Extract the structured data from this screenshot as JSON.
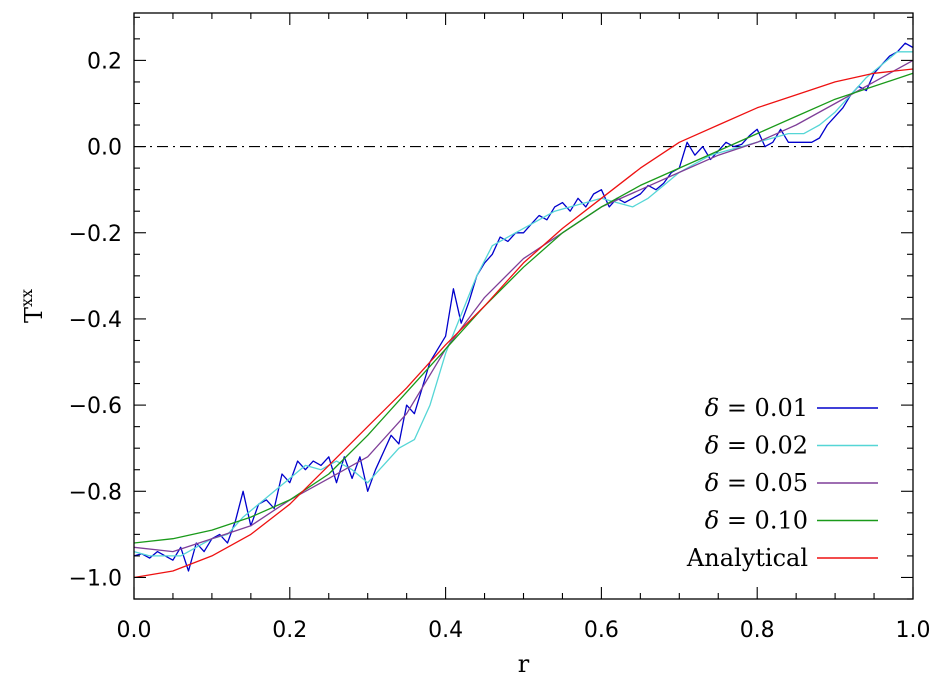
{
  "chart_data": {
    "type": "line",
    "xlabel": "r",
    "ylabel": "T",
    "ylabel_superscript": "xx",
    "xlim": [
      0.0,
      1.0
    ],
    "ylim": [
      -1.05,
      0.31
    ],
    "x_ticks": [
      "0.0",
      "0.2",
      "0.4",
      "0.6",
      "0.8",
      "1.0"
    ],
    "y_ticks": [
      "0.2",
      "0.0",
      "−0.2",
      "−0.4",
      "−0.6",
      "−0.8",
      "−1.0"
    ],
    "reference_line_y": 0.0,
    "legend_position": "bottom-right",
    "series": [
      {
        "name": "δ = 0.01",
        "legend_symbol": "δ",
        "legend_value": "= 0.01",
        "color": "#0000cc",
        "x": [
          0.0,
          0.01,
          0.02,
          0.03,
          0.04,
          0.05,
          0.06,
          0.07,
          0.08,
          0.09,
          0.1,
          0.11,
          0.12,
          0.13,
          0.14,
          0.15,
          0.16,
          0.17,
          0.18,
          0.19,
          0.2,
          0.21,
          0.22,
          0.23,
          0.24,
          0.25,
          0.26,
          0.27,
          0.28,
          0.29,
          0.3,
          0.31,
          0.32,
          0.33,
          0.34,
          0.35,
          0.36,
          0.37,
          0.38,
          0.39,
          0.4,
          0.41,
          0.42,
          0.43,
          0.44,
          0.45,
          0.46,
          0.47,
          0.48,
          0.49,
          0.5,
          0.51,
          0.52,
          0.53,
          0.54,
          0.55,
          0.56,
          0.57,
          0.58,
          0.59,
          0.6,
          0.61,
          0.62,
          0.63,
          0.64,
          0.65,
          0.66,
          0.67,
          0.68,
          0.69,
          0.7,
          0.71,
          0.72,
          0.73,
          0.74,
          0.75,
          0.76,
          0.77,
          0.78,
          0.79,
          0.8,
          0.81,
          0.82,
          0.83,
          0.84,
          0.85,
          0.86,
          0.87,
          0.88,
          0.89,
          0.9,
          0.91,
          0.92,
          0.93,
          0.94,
          0.95,
          0.96,
          0.97,
          0.98,
          0.99,
          1.0
        ],
        "values": [
          -0.95,
          -0.945,
          -0.955,
          -0.94,
          -0.95,
          -0.96,
          -0.93,
          -0.985,
          -0.92,
          -0.94,
          -0.91,
          -0.9,
          -0.92,
          -0.87,
          -0.8,
          -0.88,
          -0.83,
          -0.82,
          -0.84,
          -0.76,
          -0.78,
          -0.73,
          -0.75,
          -0.73,
          -0.74,
          -0.72,
          -0.78,
          -0.72,
          -0.77,
          -0.72,
          -0.8,
          -0.75,
          -0.71,
          -0.67,
          -0.69,
          -0.6,
          -0.62,
          -0.56,
          -0.5,
          -0.47,
          -0.44,
          -0.33,
          -0.41,
          -0.36,
          -0.3,
          -0.27,
          -0.25,
          -0.21,
          -0.22,
          -0.2,
          -0.2,
          -0.18,
          -0.16,
          -0.17,
          -0.14,
          -0.13,
          -0.15,
          -0.12,
          -0.14,
          -0.11,
          -0.1,
          -0.14,
          -0.12,
          -0.13,
          -0.12,
          -0.11,
          -0.09,
          -0.1,
          -0.085,
          -0.06,
          -0.05,
          0.01,
          -0.02,
          0.0,
          -0.03,
          -0.01,
          0.01,
          0.0,
          0.005,
          0.025,
          0.04,
          0.0,
          0.01,
          0.04,
          0.01,
          0.01,
          0.01,
          0.01,
          0.02,
          0.05,
          0.07,
          0.09,
          0.12,
          0.14,
          0.13,
          0.17,
          0.19,
          0.21,
          0.22,
          0.24,
          0.23
        ]
      },
      {
        "name": "δ = 0.02",
        "legend_symbol": "δ",
        "legend_value": "= 0.02",
        "color": "#55d6d6",
        "x": [
          0.0,
          0.02,
          0.04,
          0.06,
          0.08,
          0.1,
          0.12,
          0.14,
          0.16,
          0.18,
          0.2,
          0.22,
          0.24,
          0.26,
          0.28,
          0.3,
          0.32,
          0.34,
          0.36,
          0.38,
          0.4,
          0.42,
          0.44,
          0.46,
          0.48,
          0.5,
          0.52,
          0.54,
          0.56,
          0.58,
          0.6,
          0.62,
          0.64,
          0.66,
          0.68,
          0.7,
          0.72,
          0.74,
          0.76,
          0.78,
          0.8,
          0.82,
          0.84,
          0.86,
          0.88,
          0.9,
          0.92,
          0.94,
          0.96,
          0.98,
          1.0
        ],
        "values": [
          -0.94,
          -0.95,
          -0.95,
          -0.95,
          -0.93,
          -0.91,
          -0.9,
          -0.86,
          -0.83,
          -0.8,
          -0.77,
          -0.74,
          -0.75,
          -0.73,
          -0.75,
          -0.78,
          -0.74,
          -0.7,
          -0.68,
          -0.6,
          -0.48,
          -0.39,
          -0.3,
          -0.23,
          -0.21,
          -0.19,
          -0.17,
          -0.15,
          -0.14,
          -0.13,
          -0.12,
          -0.13,
          -0.14,
          -0.12,
          -0.09,
          -0.06,
          -0.04,
          -0.02,
          -0.01,
          0.0,
          0.01,
          0.02,
          0.03,
          0.03,
          0.05,
          0.08,
          0.12,
          0.16,
          0.19,
          0.22,
          0.22
        ]
      },
      {
        "name": "δ = 0.05",
        "legend_symbol": "δ",
        "legend_value": "= 0.05",
        "color": "#7f3f98",
        "x": [
          0.0,
          0.05,
          0.1,
          0.15,
          0.2,
          0.25,
          0.3,
          0.35,
          0.4,
          0.45,
          0.5,
          0.55,
          0.6,
          0.65,
          0.7,
          0.75,
          0.8,
          0.85,
          0.9,
          0.95,
          1.0
        ],
        "values": [
          -0.93,
          -0.94,
          -0.91,
          -0.88,
          -0.82,
          -0.77,
          -0.72,
          -0.62,
          -0.47,
          -0.35,
          -0.26,
          -0.2,
          -0.14,
          -0.1,
          -0.06,
          -0.02,
          0.01,
          0.05,
          0.1,
          0.15,
          0.2
        ]
      },
      {
        "name": "δ = 0.10",
        "legend_symbol": "δ",
        "legend_value": "= 0.10",
        "color": "#1a9a1a",
        "x": [
          0.0,
          0.05,
          0.1,
          0.15,
          0.2,
          0.25,
          0.3,
          0.35,
          0.4,
          0.45,
          0.5,
          0.55,
          0.6,
          0.65,
          0.7,
          0.75,
          0.8,
          0.85,
          0.9,
          0.95,
          1.0
        ],
        "values": [
          -0.92,
          -0.91,
          -0.89,
          -0.86,
          -0.82,
          -0.76,
          -0.67,
          -0.57,
          -0.47,
          -0.37,
          -0.28,
          -0.2,
          -0.14,
          -0.09,
          -0.05,
          -0.01,
          0.03,
          0.07,
          0.11,
          0.14,
          0.17
        ]
      },
      {
        "name": "Analytical",
        "legend_symbol": "",
        "legend_value": "Analytical",
        "color": "#ee1111",
        "x": [
          0.0,
          0.05,
          0.1,
          0.15,
          0.2,
          0.25,
          0.3,
          0.35,
          0.4,
          0.45,
          0.5,
          0.55,
          0.6,
          0.65,
          0.7,
          0.75,
          0.8,
          0.85,
          0.9,
          0.95,
          1.0
        ],
        "values": [
          -1.0,
          -0.985,
          -0.95,
          -0.9,
          -0.83,
          -0.74,
          -0.65,
          -0.56,
          -0.46,
          -0.37,
          -0.27,
          -0.19,
          -0.12,
          -0.05,
          0.01,
          0.05,
          0.09,
          0.12,
          0.15,
          0.17,
          0.18
        ]
      }
    ]
  }
}
